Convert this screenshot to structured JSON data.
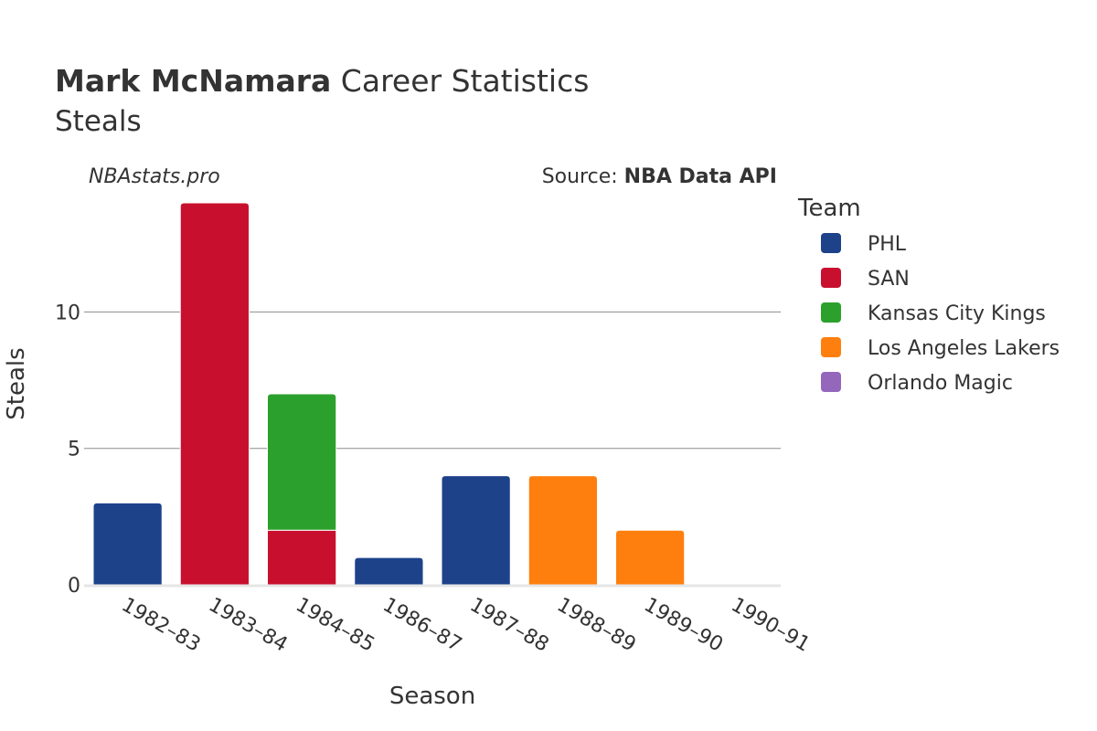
{
  "header": {
    "player_name": "Mark McNamara",
    "title_suffix": " Career Statistics",
    "stat_name": "Steals",
    "site": "NBAstats.pro",
    "source_label": "Source: ",
    "source_value": "NBA Data API"
  },
  "legend": {
    "title": "Team"
  },
  "chart_data": {
    "type": "bar",
    "stacked": true,
    "title": "Mark McNamara Career Statistics",
    "subtitle": "Steals",
    "xlabel": "Season",
    "ylabel": "Steals",
    "ylim": [
      0,
      14
    ],
    "yticks": [
      0,
      5,
      10
    ],
    "grid": true,
    "legend_placement": "right",
    "categories": [
      "1982–83",
      "1983–84",
      "1984–85",
      "1986–87",
      "1987–88",
      "1988–89",
      "1989–90",
      "1990–91"
    ],
    "series": [
      {
        "name": "PHL",
        "color": "#1d428a",
        "values": [
          3,
          0,
          0,
          1,
          4,
          0,
          0,
          0
        ]
      },
      {
        "name": "SAN",
        "color": "#c8102e",
        "values": [
          0,
          14,
          2,
          0,
          0,
          0,
          0,
          0
        ]
      },
      {
        "name": "Kansas City Kings",
        "color": "#2ca02c",
        "values": [
          0,
          0,
          5,
          0,
          0,
          0,
          0,
          0
        ]
      },
      {
        "name": "Los Angeles Lakers",
        "color": "#ff7f0e",
        "values": [
          0,
          0,
          0,
          0,
          0,
          4,
          2,
          0
        ]
      },
      {
        "name": "Orlando Magic",
        "color": "#9467bd",
        "values": [
          0,
          0,
          0,
          0,
          0,
          0,
          0,
          0
        ]
      }
    ]
  }
}
